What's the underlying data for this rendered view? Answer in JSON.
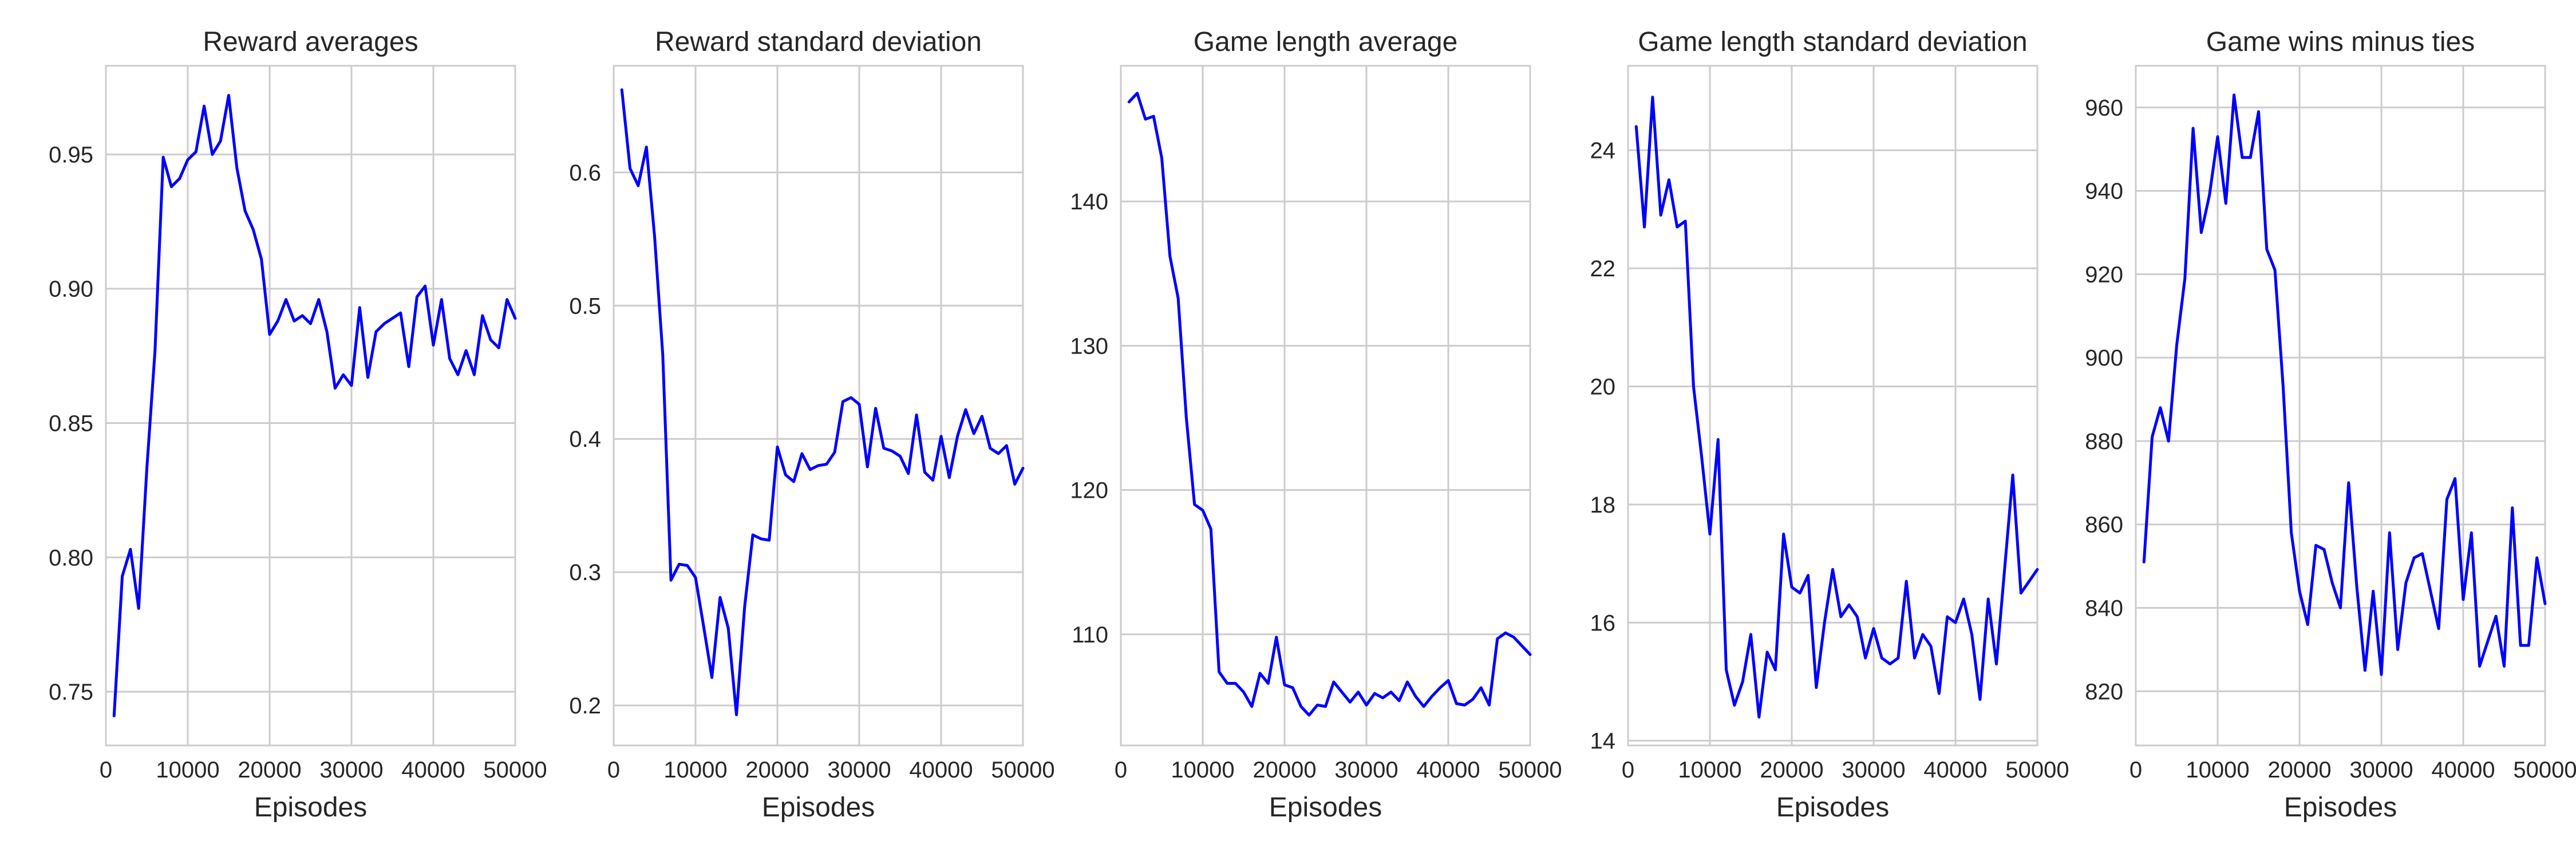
{
  "chart_data": [
    {
      "type": "line",
      "title": "Reward averages",
      "xlabel": "Episodes",
      "ylabel": "",
      "xlim": [
        0,
        50000
      ],
      "ylim": [
        0.73,
        0.983
      ],
      "xticks": [
        0,
        10000,
        20000,
        30000,
        40000,
        50000
      ],
      "yticks": [
        0.75,
        0.8,
        0.85,
        0.9,
        0.95
      ],
      "ytick_labels": [
        "0.75",
        "0.80",
        "0.85",
        "0.90",
        "0.95"
      ],
      "grid": true,
      "color": "#0000ff",
      "x": [
        1000,
        2000,
        3000,
        4000,
        5000,
        6000,
        7000,
        8000,
        9000,
        10000,
        11000,
        12000,
        13000,
        14000,
        15000,
        16000,
        17000,
        18000,
        19000,
        20000,
        21000,
        22000,
        23000,
        24000,
        25000,
        26000,
        27000,
        28000,
        29000,
        30000,
        31000,
        32000,
        33000,
        34000,
        35000,
        36000,
        37000,
        38000,
        39000,
        40000,
        41000,
        42000,
        43000,
        44000,
        45000,
        46000,
        47000,
        48000,
        49000,
        50000
      ],
      "y": [
        0.741,
        0.793,
        0.803,
        0.781,
        0.833,
        0.877,
        0.949,
        0.938,
        0.941,
        0.948,
        0.951,
        0.968,
        0.95,
        0.955,
        0.972,
        0.945,
        0.929,
        0.922,
        0.911,
        0.883,
        0.888,
        0.896,
        0.888,
        0.89,
        0.887,
        0.896,
        0.884,
        0.863,
        0.868,
        0.864,
        0.893,
        0.867,
        0.884,
        0.887,
        0.889,
        0.891,
        0.871,
        0.897,
        0.901,
        0.879,
        0.896,
        0.874,
        0.868,
        0.877,
        0.868,
        0.89,
        0.881,
        0.878,
        0.896,
        0.889
      ]
    },
    {
      "type": "line",
      "title": "Reward standard deviation",
      "xlabel": "Episodes",
      "ylabel": "",
      "xlim": [
        0,
        50000
      ],
      "ylim": [
        0.17,
        0.68
      ],
      "xticks": [
        0,
        10000,
        20000,
        30000,
        40000,
        50000
      ],
      "yticks": [
        0.2,
        0.3,
        0.4,
        0.5,
        0.6
      ],
      "ytick_labels": [
        "0.2",
        "0.3",
        "0.4",
        "0.5",
        "0.6"
      ],
      "grid": true,
      "color": "#0000ff",
      "x": [
        1000,
        2000,
        3000,
        4000,
        5000,
        6000,
        7000,
        8000,
        9000,
        10000,
        11000,
        12000,
        13000,
        14000,
        15000,
        16000,
        17000,
        18000,
        19000,
        20000,
        21000,
        22000,
        23000,
        24000,
        25000,
        26000,
        27000,
        28000,
        29000,
        30000,
        31000,
        32000,
        33000,
        34000,
        35000,
        36000,
        37000,
        38000,
        39000,
        40000,
        41000,
        42000,
        43000,
        44000,
        45000,
        46000,
        47000,
        48000,
        49000,
        50000
      ],
      "y": [
        0.662,
        0.603,
        0.59,
        0.619,
        0.552,
        0.463,
        0.294,
        0.306,
        0.305,
        0.296,
        0.259,
        0.221,
        0.281,
        0.258,
        0.193,
        0.274,
        0.328,
        0.325,
        0.324,
        0.394,
        0.373,
        0.368,
        0.389,
        0.377,
        0.38,
        0.381,
        0.39,
        0.428,
        0.431,
        0.426,
        0.379,
        0.423,
        0.393,
        0.391,
        0.387,
        0.374,
        0.418,
        0.375,
        0.369,
        0.402,
        0.371,
        0.402,
        0.422,
        0.404,
        0.417,
        0.393,
        0.389,
        0.395,
        0.366,
        0.378
      ]
    },
    {
      "type": "line",
      "title": "Game length average",
      "xlabel": "Episodes",
      "ylabel": "",
      "xlim": [
        0,
        50000
      ],
      "ylim": [
        102.3,
        149.4
      ],
      "xticks": [
        0,
        10000,
        20000,
        30000,
        40000,
        50000
      ],
      "yticks": [
        110,
        120,
        130,
        140
      ],
      "ytick_labels": [
        "110",
        "120",
        "130",
        "140"
      ],
      "grid": true,
      "color": "#0000ff",
      "x": [
        1000,
        2000,
        3000,
        4000,
        5000,
        6000,
        7000,
        8000,
        9000,
        10000,
        11000,
        12000,
        13000,
        14000,
        15000,
        16000,
        17000,
        18000,
        19000,
        20000,
        21000,
        22000,
        23000,
        24000,
        25000,
        26000,
        27000,
        28000,
        29000,
        30000,
        31000,
        32000,
        33000,
        34000,
        35000,
        36000,
        37000,
        38000,
        39000,
        40000,
        41000,
        42000,
        43000,
        44000,
        45000,
        46000,
        47000,
        48000,
        49000,
        50000
      ],
      "y": [
        146.9,
        147.5,
        145.7,
        145.9,
        143.0,
        136.2,
        133.3,
        125.0,
        119.0,
        118.6,
        117.3,
        107.4,
        106.6,
        106.6,
        106.0,
        105.0,
        107.3,
        106.6,
        109.8,
        106.5,
        106.3,
        105.0,
        104.4,
        105.1,
        105.0,
        106.7,
        106.0,
        105.3,
        106.0,
        105.1,
        105.9,
        105.6,
        106.0,
        105.4,
        106.7,
        105.7,
        105.0,
        105.7,
        106.3,
        106.8,
        105.2,
        105.1,
        105.5,
        106.3,
        105.1,
        109.7,
        110.1,
        109.8,
        109.2,
        108.6
      ]
    },
    {
      "type": "line",
      "title": "Game length standard deviation",
      "xlabel": "Episodes",
      "ylabel": "",
      "xlim": [
        0,
        50000
      ],
      "ylim": [
        13.92,
        25.43
      ],
      "xticks": [
        0,
        10000,
        20000,
        30000,
        40000,
        50000
      ],
      "yticks": [
        14,
        16,
        18,
        20,
        22,
        24
      ],
      "ytick_labels": [
        "14",
        "16",
        "18",
        "20",
        "22",
        "24"
      ],
      "grid": true,
      "color": "#0000ff",
      "x": [
        1000,
        2000,
        3000,
        4000,
        5000,
        6000,
        7000,
        8000,
        9000,
        10000,
        11000,
        12000,
        13000,
        14000,
        15000,
        16000,
        17000,
        18000,
        19000,
        20000,
        21000,
        22000,
        23000,
        24000,
        25000,
        26000,
        27000,
        28000,
        29000,
        30000,
        31000,
        32000,
        33000,
        34000,
        35000,
        36000,
        37000,
        38000,
        39000,
        40000,
        41000,
        42000,
        43000,
        44000,
        45000,
        46000,
        47000,
        48000,
        49000,
        50000
      ],
      "y": [
        24.4,
        22.7,
        24.9,
        22.9,
        23.5,
        22.7,
        22.8,
        20.0,
        18.8,
        17.5,
        19.1,
        15.2,
        14.6,
        15.0,
        15.8,
        14.4,
        15.5,
        15.2,
        17.5,
        16.6,
        16.5,
        16.8,
        14.9,
        16.0,
        16.9,
        16.1,
        16.3,
        16.1,
        15.4,
        15.9,
        15.4,
        15.3,
        15.4,
        16.7,
        15.4,
        15.8,
        15.6,
        14.8,
        16.1,
        16.0,
        16.4,
        15.8,
        14.7,
        16.4,
        15.3,
        16.9,
        18.5,
        16.5,
        16.7,
        16.9
      ]
    },
    {
      "type": "line",
      "title": "Game wins minus ties",
      "xlabel": "Episodes",
      "ylabel": "",
      "xlim": [
        0,
        50000
      ],
      "ylim": [
        807,
        970
      ],
      "xticks": [
        0,
        10000,
        20000,
        30000,
        40000,
        50000
      ],
      "yticks": [
        820,
        840,
        860,
        880,
        900,
        920,
        940,
        960
      ],
      "ytick_labels": [
        "820",
        "840",
        "860",
        "880",
        "900",
        "920",
        "940",
        "960"
      ],
      "grid": true,
      "color": "#0000ff",
      "x": [
        1000,
        2000,
        3000,
        4000,
        5000,
        6000,
        7000,
        8000,
        9000,
        10000,
        11000,
        12000,
        13000,
        14000,
        15000,
        16000,
        17000,
        18000,
        19000,
        20000,
        21000,
        22000,
        23000,
        24000,
        25000,
        26000,
        27000,
        28000,
        29000,
        30000,
        31000,
        32000,
        33000,
        34000,
        35000,
        36000,
        37000,
        38000,
        39000,
        40000,
        41000,
        42000,
        43000,
        44000,
        45000,
        46000,
        47000,
        48000,
        49000,
        50000
      ],
      "y": [
        851,
        881,
        888,
        880,
        903,
        919,
        955,
        930,
        939,
        953,
        937,
        963,
        948,
        948,
        959,
        926,
        921,
        893,
        858,
        844,
        836,
        855,
        854,
        846,
        840,
        870,
        845,
        825,
        844,
        824,
        858,
        830,
        846,
        852,
        853,
        844,
        835,
        866,
        871,
        842,
        858,
        826,
        832,
        838,
        826,
        864,
        831,
        831,
        852,
        841
      ]
    }
  ]
}
